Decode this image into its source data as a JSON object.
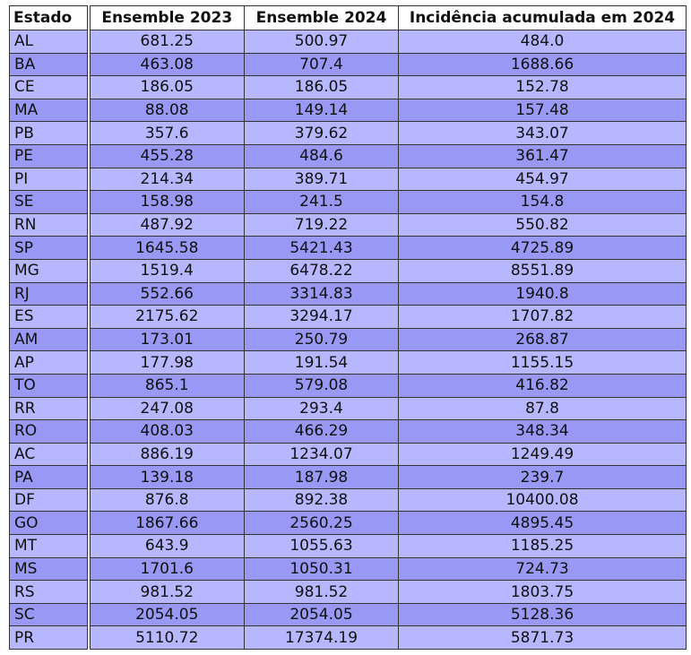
{
  "table": {
    "headers": [
      "Estado",
      "Ensemble 2023",
      "Ensemble 2024",
      "Incidência acumulada em 2024"
    ],
    "rows": [
      [
        "AL",
        "681.25",
        "500.97",
        "484.0"
      ],
      [
        "BA",
        "463.08",
        "707.4",
        "1688.66"
      ],
      [
        "CE",
        "186.05",
        "186.05",
        "152.78"
      ],
      [
        "MA",
        "88.08",
        "149.14",
        "157.48"
      ],
      [
        "PB",
        "357.6",
        "379.62",
        "343.07"
      ],
      [
        "PE",
        "455.28",
        "484.6",
        "361.47"
      ],
      [
        "PI",
        "214.34",
        "389.71",
        "454.97"
      ],
      [
        "SE",
        "158.98",
        "241.5",
        "154.8"
      ],
      [
        "RN",
        "487.92",
        "719.22",
        "550.82"
      ],
      [
        "SP",
        "1645.58",
        "5421.43",
        "4725.89"
      ],
      [
        "MG",
        "1519.4",
        "6478.22",
        "8551.89"
      ],
      [
        "RJ",
        "552.66",
        "3314.83",
        "1940.8"
      ],
      [
        "ES",
        "2175.62",
        "3294.17",
        "1707.82"
      ],
      [
        "AM",
        "173.01",
        "250.79",
        "268.87"
      ],
      [
        "AP",
        "177.98",
        "191.54",
        "1155.15"
      ],
      [
        "TO",
        "865.1",
        "579.08",
        "416.82"
      ],
      [
        "RR",
        "247.08",
        "293.4",
        "87.8"
      ],
      [
        "RO",
        "408.03",
        "466.29",
        "348.34"
      ],
      [
        "AC",
        "886.19",
        "1234.07",
        "1249.49"
      ],
      [
        "PA",
        "139.18",
        "187.98",
        "239.7"
      ],
      [
        "DF",
        "876.8",
        "892.38",
        "10400.08"
      ],
      [
        "GO",
        "1867.66",
        "2560.25",
        "4895.45"
      ],
      [
        "MT",
        "643.9",
        "1055.63",
        "1185.25"
      ],
      [
        "MS",
        "1701.6",
        "1050.31",
        "724.73"
      ],
      [
        "RS",
        "981.52",
        "981.52",
        "1803.75"
      ],
      [
        "SC",
        "2054.05",
        "2054.05",
        "5128.36"
      ],
      [
        "PR",
        "5110.72",
        "17374.19",
        "5871.73"
      ]
    ]
  },
  "colors": {
    "row_light": "#b7b7ff",
    "row_dark": "#9999f5",
    "header_bg": "#ffffff",
    "border": "#333333"
  }
}
